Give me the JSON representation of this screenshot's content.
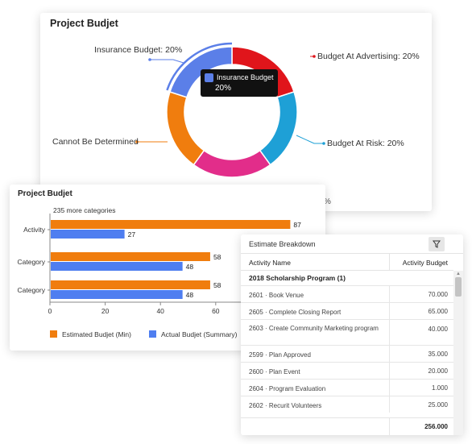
{
  "donut": {
    "title": "Project Budjet",
    "slices": [
      {
        "label": "Budget At Advertising: 20%",
        "value": 20,
        "color": "#e0151b"
      },
      {
        "label": "Budget At Risk: 20%",
        "value": 20,
        "color": "#1ea0d6"
      },
      {
        "label": "",
        "value": 20,
        "color": "#e22d8a"
      },
      {
        "label": "Cannot Be Determined",
        "value": 20,
        "color": "#f07d0e"
      },
      {
        "label": "Insurance Budget: 20%",
        "value": 20,
        "color": "#5b7fe8"
      }
    ],
    "tooltip": {
      "name": "Insurance Budget",
      "value": "20%"
    },
    "peek_text": "%"
  },
  "bar_chart": {
    "title": "Project Budjet",
    "more_categories": "235 more categories",
    "legend": {
      "estimated": "Estimated Budjet (Min)",
      "actual": "Actual Budjet (Summary)"
    }
  },
  "chart_data": {
    "type": "bar",
    "orientation": "horizontal",
    "title": "Project Budjet",
    "categories": [
      "Activity",
      "Category",
      "Category"
    ],
    "series": [
      {
        "name": "Estimated Budjet (Min)",
        "values": [
          87,
          58,
          58
        ],
        "color": "#f07d0e"
      },
      {
        "name": "Actual Budjet (Summary)",
        "values": [
          27,
          48,
          48
        ],
        "color": "#4f7ef0"
      }
    ],
    "xlim": [
      0,
      90
    ],
    "xticks": [
      "0",
      "20",
      "40",
      "60"
    ],
    "grid": false,
    "legend_position": "bottom"
  },
  "table": {
    "title": "Estimate Breakdown",
    "columns": {
      "name": "Activity Name",
      "budget": "Activity Budget"
    },
    "group": "2018 Scholarship Program (1)",
    "rows": [
      {
        "name": "2601 · Book Venue",
        "budget": "70.000"
      },
      {
        "name": "2605 · Complete Closing Report",
        "budget": "65.000"
      },
      {
        "name": "2603 · Create Community Marketing program",
        "budget": "40.000"
      },
      {
        "name": "2599 · Plan Approved",
        "budget": "35.000"
      },
      {
        "name": "2600 · Plan Event",
        "budget": "20.000"
      },
      {
        "name": "2604 · Program Evaluation",
        "budget": "1.000"
      },
      {
        "name": "2602 · Recurit Volunteers",
        "budget": "25.000"
      }
    ],
    "total": "256.000"
  }
}
